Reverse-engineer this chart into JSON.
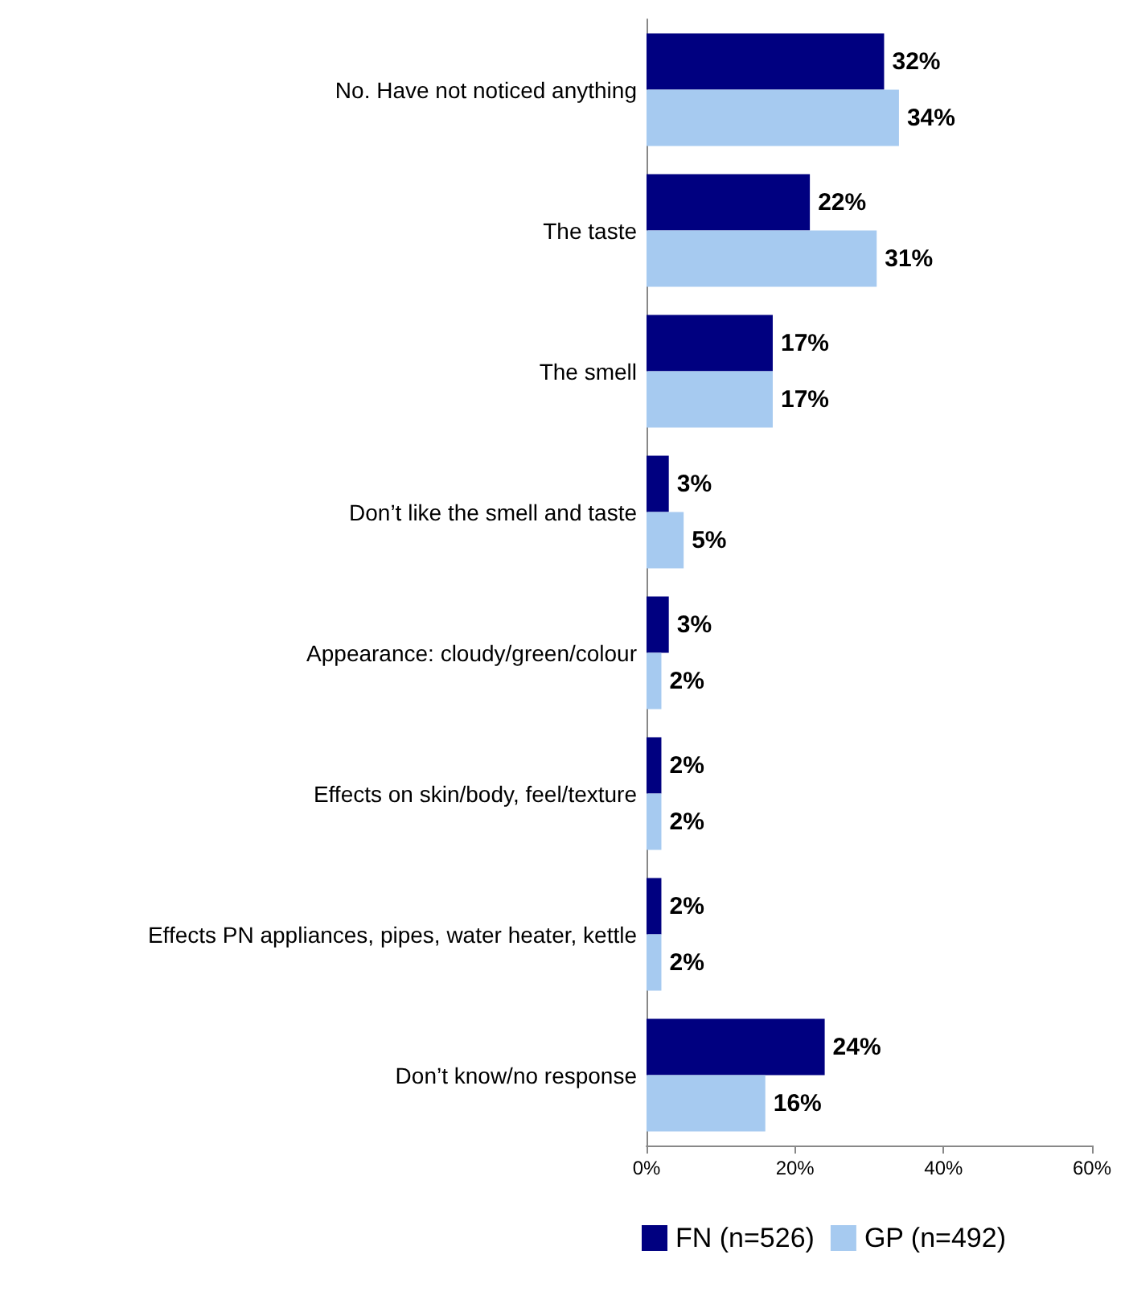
{
  "chart_data": {
    "type": "bar",
    "orientation": "horizontal",
    "categories": [
      "No. Have not noticed anything",
      "The taste",
      "The smell",
      "Don’t like the smell and taste",
      "Appearance: cloudy/green/colour",
      "Effects on skin/body, feel/texture",
      "Effects PN appliances, pipes, water heater, kettle",
      "Don’t know/no response"
    ],
    "series": [
      {
        "name": "FN (n=526)",
        "color": "#000080",
        "values": [
          32,
          22,
          17,
          3,
          3,
          2,
          2,
          24
        ],
        "value_labels": [
          "32%",
          "22%",
          "17%",
          "3%",
          "3%",
          "2%",
          "2%",
          "24%"
        ]
      },
      {
        "name": "GP (n=492)",
        "color": "#a6caf0",
        "values": [
          34,
          31,
          17,
          5,
          2,
          2,
          2,
          16
        ],
        "value_labels": [
          "34%",
          "31%",
          "17%",
          "5%",
          "2%",
          "2%",
          "2%",
          "16%"
        ]
      }
    ],
    "xlim": [
      0,
      60
    ],
    "xticks": [
      {
        "value": 0,
        "label": "0%"
      },
      {
        "value": 20,
        "label": "20%"
      },
      {
        "value": 40,
        "label": "40%"
      },
      {
        "value": 60,
        "label": "60%"
      }
    ],
    "grid": false,
    "legend": "bottom"
  }
}
